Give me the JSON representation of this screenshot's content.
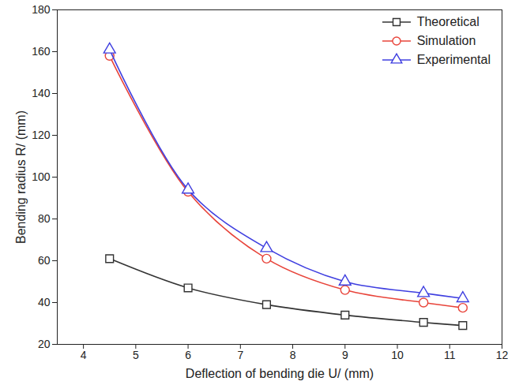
{
  "chart_data": {
    "type": "line",
    "xlabel": "Deflection of bending die U/ (mm)",
    "ylabel": "Bending radius R/ (mm)",
    "x": [
      4.5,
      6,
      7.5,
      9,
      10.5,
      11.25
    ],
    "series": [
      {
        "name": "Theoretical",
        "color": "#333333",
        "marker": "square",
        "values": [
          61,
          47,
          39,
          34,
          30.5,
          29
        ]
      },
      {
        "name": "Simulation",
        "color": "#e8443a",
        "marker": "circle",
        "values": [
          158,
          93,
          61,
          46,
          40,
          37.5
        ]
      },
      {
        "name": "Experimental",
        "color": "#3f3fe0",
        "marker": "triangle",
        "values": [
          161,
          94,
          66,
          50,
          44.5,
          42
        ]
      }
    ],
    "xlim": [
      3.5,
      12
    ],
    "xticks": [
      4,
      5,
      6,
      7,
      8,
      9,
      10,
      11,
      12
    ],
    "ylim": [
      20,
      180
    ],
    "yticks": [
      20,
      40,
      60,
      80,
      100,
      120,
      140,
      160,
      180
    ],
    "grid": false,
    "legend": "upper right"
  }
}
